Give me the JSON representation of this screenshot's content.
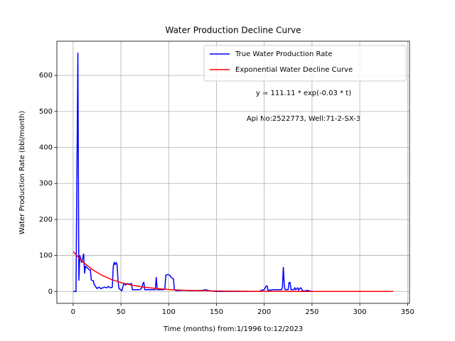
{
  "chart_data": {
    "type": "line",
    "title": "Water Production Decline Curve",
    "x_label": "Time (months) from:1/1996 to:12/2023",
    "y_label": "Water Production Rate (bbl/month)",
    "annotations": [
      "y = 111.11 * exp(-0.03 * t)",
      "Api No:2522773, Well:71-2-SX-3"
    ],
    "xlim": [
      -17,
      352
    ],
    "ylim": [
      -33,
      695
    ],
    "xticks": [
      0,
      50,
      100,
      150,
      200,
      250,
      300,
      350
    ],
    "yticks": [
      0,
      100,
      200,
      300,
      400,
      500,
      600
    ],
    "grid": true,
    "legend": "upper right",
    "series": [
      {
        "name": "True Water Production Rate",
        "color": "#0000ff",
        "x": [
          0,
          3,
          5,
          6,
          7,
          9,
          11,
          12,
          13,
          15,
          17,
          18,
          19,
          21,
          22,
          24,
          25,
          27,
          29,
          31,
          33,
          35,
          37,
          39,
          41,
          42,
          43,
          44,
          45,
          46,
          47,
          48,
          50,
          51,
          53,
          55,
          57,
          59,
          61,
          62,
          65,
          70,
          72,
          73,
          74,
          75,
          80,
          86,
          87,
          88,
          92,
          95,
          96,
          97,
          99,
          101,
          103,
          105,
          106,
          108,
          115,
          125,
          135,
          139,
          141,
          145,
          150,
          195,
          197,
          200,
          201,
          202,
          203,
          204,
          210,
          218,
          219,
          220,
          221,
          222,
          225,
          226,
          227,
          228,
          231,
          232,
          233,
          235,
          236,
          238,
          239,
          240,
          242,
          245,
          248,
          250,
          335
        ],
        "values": [
          0,
          0,
          663,
          30,
          100,
          80,
          105,
          50,
          70,
          65,
          60,
          60,
          32,
          30,
          20,
          12,
          8,
          12,
          8,
          10,
          12,
          10,
          14,
          10,
          12,
          70,
          80,
          75,
          80,
          75,
          30,
          8,
          4,
          2,
          22,
          18,
          22,
          20,
          22,
          5,
          5,
          5,
          10,
          22,
          25,
          5,
          5,
          5,
          40,
          5,
          5,
          5,
          8,
          45,
          47,
          45,
          38,
          35,
          5,
          2,
          3,
          2,
          3,
          5,
          3,
          1,
          0,
          0,
          3,
          5,
          10,
          15,
          15,
          3,
          5,
          5,
          10,
          68,
          15,
          5,
          5,
          25,
          25,
          5,
          5,
          10,
          5,
          10,
          4,
          10,
          8,
          2,
          1,
          3,
          1,
          0,
          0
        ]
      },
      {
        "name": "Exponential Water Decline Curve",
        "color": "#ff0000",
        "x": [
          0,
          10,
          20,
          30,
          40,
          50,
          60,
          70,
          80,
          90,
          100,
          110,
          120,
          130,
          140,
          150,
          160,
          170,
          180,
          190,
          200,
          210,
          220,
          230,
          240,
          250,
          260,
          280,
          300,
          320,
          335
        ],
        "values": [
          111.1,
          82.3,
          61.0,
          45.2,
          33.5,
          24.8,
          18.4,
          13.6,
          10.1,
          7.5,
          5.5,
          4.1,
          3.0,
          2.2,
          1.7,
          1.2,
          0.9,
          0.7,
          0.5,
          0.4,
          0.3,
          0.2,
          0.2,
          0.1,
          0.1,
          0.1,
          0.0,
          0.0,
          0.0,
          0.0,
          0.0
        ]
      }
    ]
  }
}
